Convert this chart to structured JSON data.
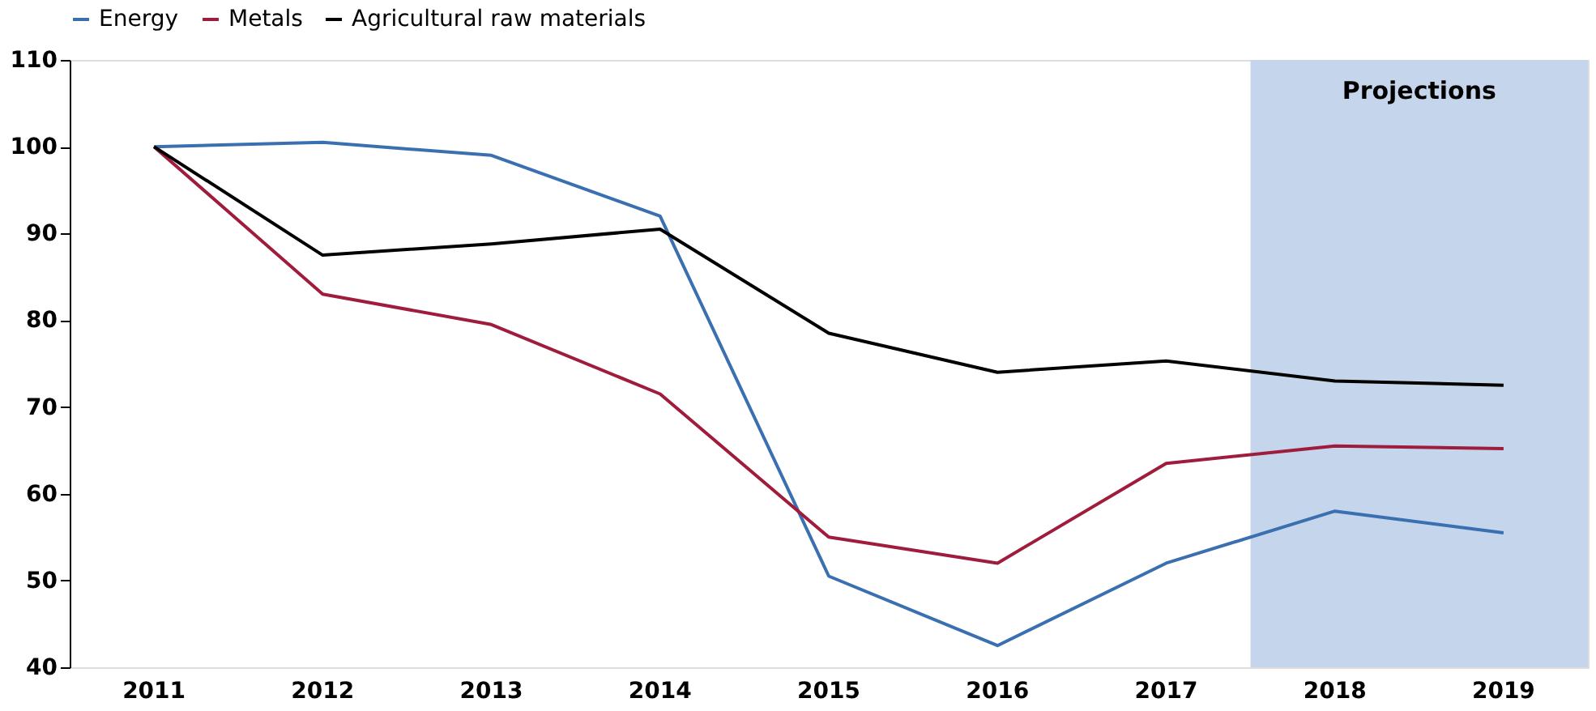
{
  "chart_data": {
    "type": "line",
    "categories": [
      "2011",
      "2012",
      "2013",
      "2014",
      "2015",
      "2016",
      "2017",
      "2018",
      "2019"
    ],
    "series": [
      {
        "name": "Energy",
        "color": "#3a6fb0",
        "values": [
          100,
          100.5,
          99,
          92,
          50.5,
          42.5,
          52,
          58,
          55.5
        ]
      },
      {
        "name": "Metals",
        "color": "#a01c3c",
        "values": [
          100,
          83,
          79.5,
          71.5,
          55,
          52,
          63.5,
          65.5,
          65.2
        ]
      },
      {
        "name": "Agricultural raw materials",
        "color": "#000000",
        "values": [
          100,
          87.5,
          88.8,
          90.5,
          78.5,
          74,
          75.3,
          73,
          72.5
        ]
      }
    ],
    "ylim": [
      40,
      110
    ],
    "yticks": [
      40,
      50,
      60,
      70,
      80,
      90,
      100,
      110
    ],
    "bands": [
      {
        "axis": "x",
        "from": "2018",
        "to": "2019",
        "label": "Projections",
        "color": "#c5d5ec"
      }
    ],
    "grid": false,
    "legend": "top",
    "marker": "none",
    "line_style": "solid"
  }
}
